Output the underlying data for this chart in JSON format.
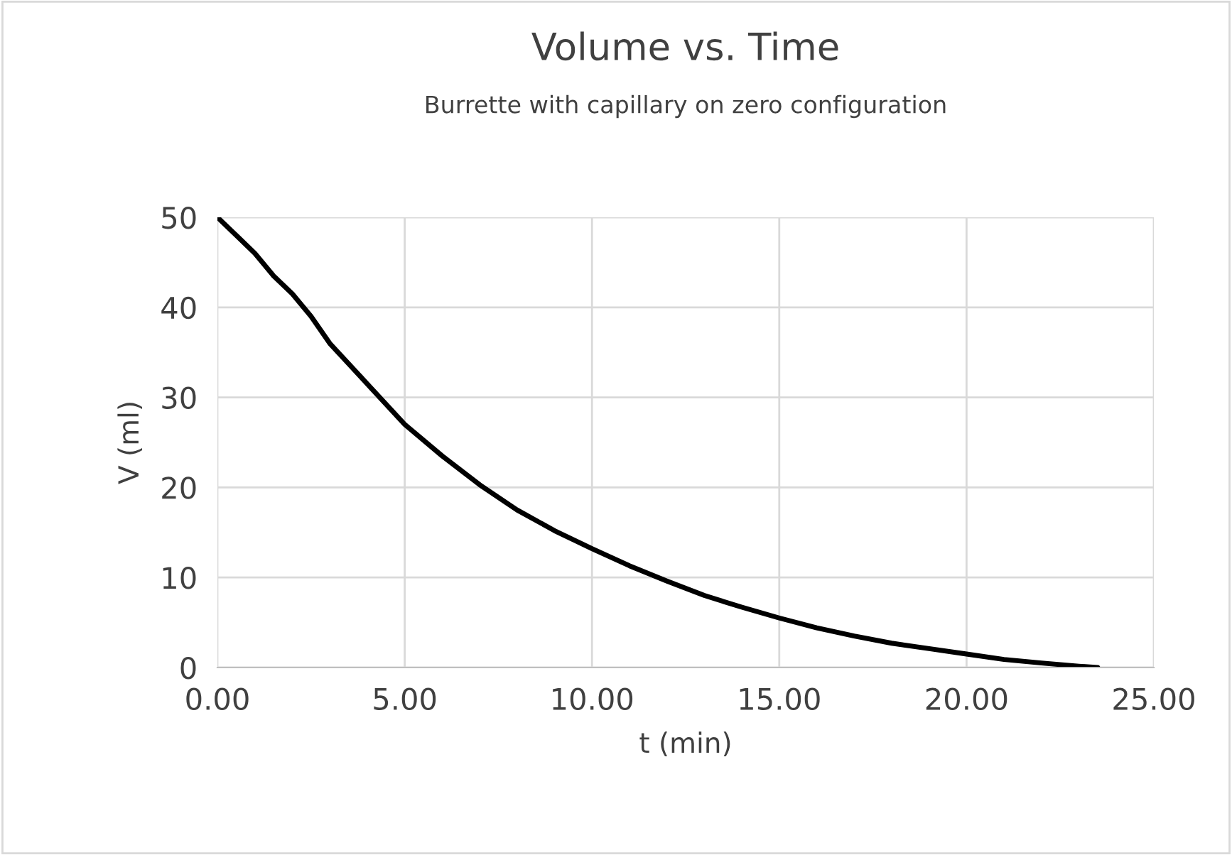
{
  "chart_data": {
    "type": "line",
    "title": "Volume vs. Time",
    "subtitle": "Burrette with capillary on zero configuration",
    "xlabel": "t (min)",
    "ylabel": "V (ml)",
    "x": [
      0,
      0.5,
      1,
      1.5,
      2,
      2.5,
      3,
      4,
      5,
      6,
      7,
      8,
      9,
      10,
      11,
      12,
      13,
      14,
      15,
      16,
      17,
      18,
      19,
      20,
      21,
      22,
      23,
      23.5
    ],
    "series": [
      {
        "color": "#000000",
        "values": [
          50,
          48,
          46,
          43.5,
          41.5,
          39,
          36,
          31.5,
          27,
          23.5,
          20.3,
          17.5,
          15.2,
          13.2,
          11.3,
          9.6,
          8.0,
          6.7,
          5.5,
          4.4,
          3.5,
          2.7,
          2.1,
          1.5,
          0.9,
          0.5,
          0.15,
          0
        ]
      }
    ],
    "xlim": [
      0,
      25
    ],
    "xticks": [
      {
        "value": 0,
        "label": "0.00"
      },
      {
        "value": 5,
        "label": "5.00"
      },
      {
        "value": 10,
        "label": "10.00"
      },
      {
        "value": 15,
        "label": "15.00"
      },
      {
        "value": 20,
        "label": "20.00"
      },
      {
        "value": 25,
        "label": "25.00"
      }
    ],
    "ylim": [
      0,
      50
    ],
    "yticks": [
      0,
      10,
      20,
      30,
      40,
      50
    ],
    "grid": true,
    "legend": false,
    "marker": "none",
    "line_style": "solid"
  }
}
